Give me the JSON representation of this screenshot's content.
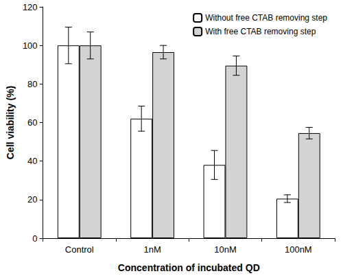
{
  "chart_data": {
    "type": "bar",
    "x_label": "Concentration of incubated QD",
    "y_label": "Cell viability (%)",
    "categories": [
      "Control",
      "1nM",
      "10nM",
      "100nM"
    ],
    "series": [
      {
        "name": "Without free CTAB removing step",
        "color": "#ffffff",
        "values": [
          100,
          62,
          38,
          20.5
        ],
        "errors": [
          9.5,
          6.5,
          7.5,
          2
        ]
      },
      {
        "name": "With free CTAB removing step",
        "color": "#d3d3d3",
        "values": [
          100,
          96.5,
          89.5,
          54.5
        ],
        "errors": [
          7,
          3.5,
          5,
          3
        ]
      }
    ],
    "ylim": [
      0,
      120
    ],
    "yticks": [
      0,
      20,
      40,
      60,
      80,
      100,
      120
    ],
    "grid": false,
    "legend": "upper right"
  }
}
